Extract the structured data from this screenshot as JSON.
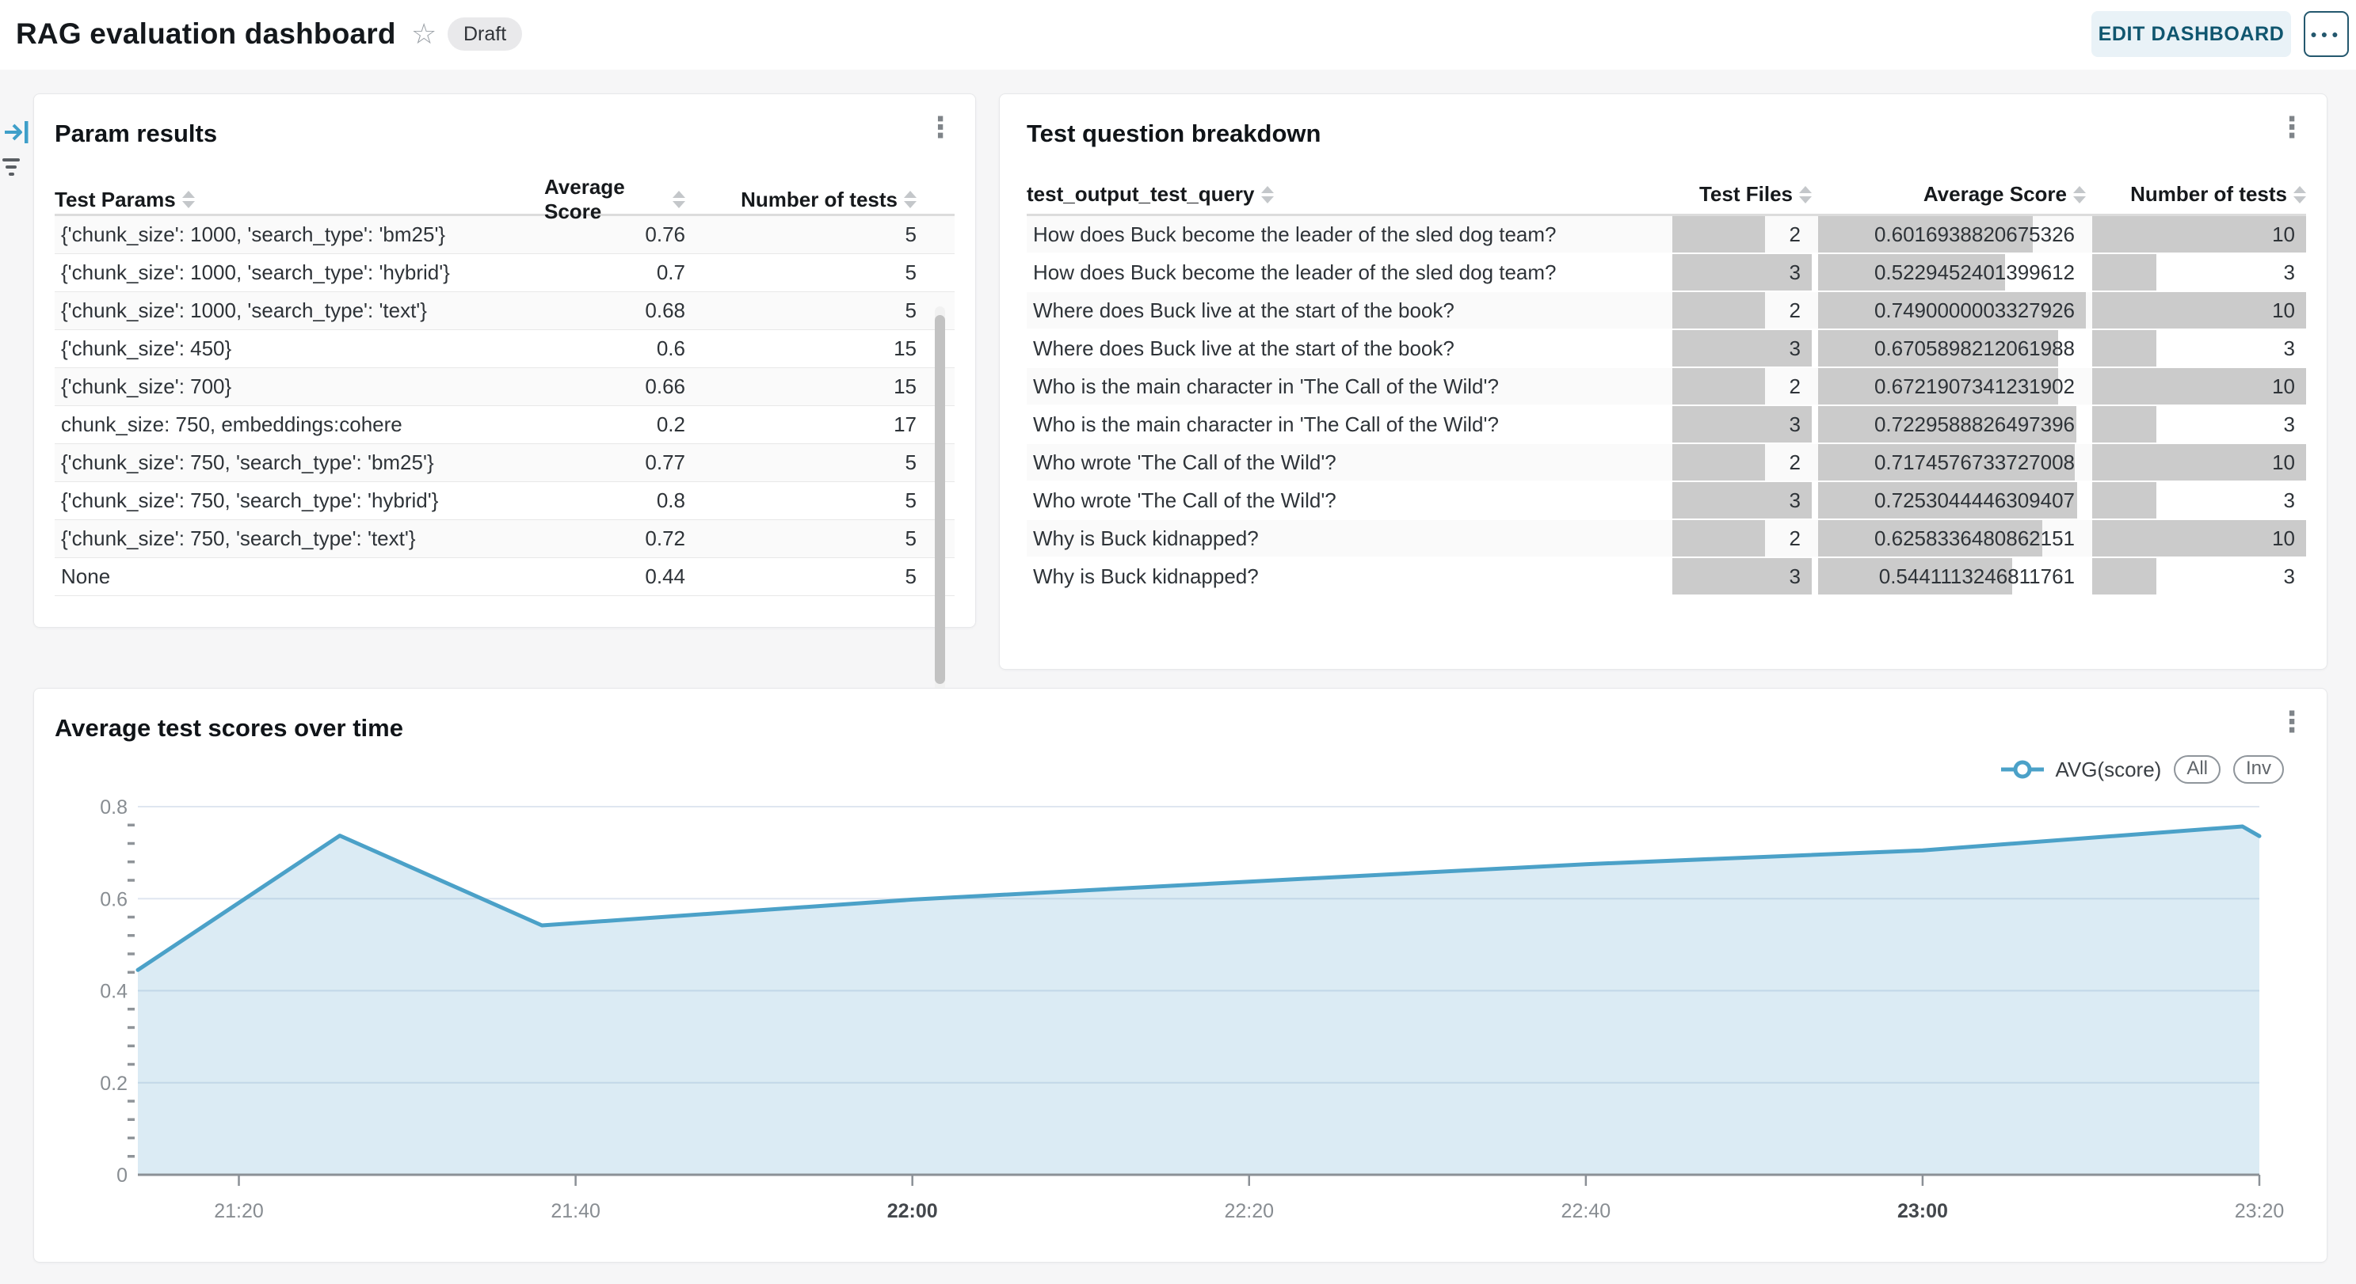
{
  "header": {
    "title": "RAG evaluation dashboard",
    "status_badge": "Draft",
    "edit_button": "EDIT DASHBOARD"
  },
  "icons": {
    "star": "☆",
    "card_menu": "⋮",
    "more_menu": "●●●"
  },
  "param_results": {
    "title": "Param results",
    "columns": [
      "Test Params",
      "Average Score",
      "Number of tests"
    ],
    "rows": [
      {
        "params": "{'chunk_size': 1000, 'search_type': 'bm25'}",
        "score": "0.76",
        "tests": "5"
      },
      {
        "params": "{'chunk_size': 1000, 'search_type': 'hybrid'}",
        "score": "0.7",
        "tests": "5"
      },
      {
        "params": "{'chunk_size': 1000, 'search_type': 'text'}",
        "score": "0.68",
        "tests": "5"
      },
      {
        "params": "{'chunk_size': 450}",
        "score": "0.6",
        "tests": "15"
      },
      {
        "params": "{'chunk_size': 700}",
        "score": "0.66",
        "tests": "15"
      },
      {
        "params": "chunk_size: 750, embeddings:cohere",
        "score": "0.2",
        "tests": "17"
      },
      {
        "params": "{'chunk_size': 750, 'search_type': 'bm25'}",
        "score": "0.77",
        "tests": "5"
      },
      {
        "params": "{'chunk_size': 750, 'search_type': 'hybrid'}",
        "score": "0.8",
        "tests": "5"
      },
      {
        "params": "{'chunk_size': 750, 'search_type': 'text'}",
        "score": "0.72",
        "tests": "5"
      },
      {
        "params": "None",
        "score": "0.44",
        "tests": "5"
      }
    ]
  },
  "test_question_breakdown": {
    "title": "Test question breakdown",
    "columns": [
      "test_output_test_query",
      "Test Files",
      "Average Score",
      "Number of tests"
    ],
    "bar_max": {
      "files": 3,
      "tests": 10
    },
    "rows": [
      {
        "query": "How does Buck become the leader of the sled dog team?",
        "files": "2",
        "score": "0.6016938820675326",
        "tests": "10"
      },
      {
        "query": "How does Buck become the leader of the sled dog team?",
        "files": "3",
        "score": "0.5229452401399612",
        "tests": "3"
      },
      {
        "query": "Where does Buck live at the start of the book?",
        "files": "2",
        "score": "0.7490000003327926",
        "tests": "10"
      },
      {
        "query": "Where does Buck live at the start of the book?",
        "files": "3",
        "score": "0.6705898212061988",
        "tests": "3"
      },
      {
        "query": "Who is the main character in 'The Call of the Wild'?",
        "files": "2",
        "score": "0.6721907341231902",
        "tests": "10"
      },
      {
        "query": "Who is the main character in 'The Call of the Wild'?",
        "files": "3",
        "score": "0.7229588826497396",
        "tests": "3"
      },
      {
        "query": "Who wrote 'The Call of the Wild'?",
        "files": "2",
        "score": "0.7174576733727008",
        "tests": "10"
      },
      {
        "query": "Who wrote 'The Call of the Wild'?",
        "files": "3",
        "score": "0.7253044446309407",
        "tests": "3"
      },
      {
        "query": "Why is Buck kidnapped?",
        "files": "2",
        "score": "0.6258336480862151",
        "tests": "10"
      },
      {
        "query": "Why is Buck kidnapped?",
        "files": "3",
        "score": "0.5441113246811761",
        "tests": "3"
      }
    ]
  },
  "chart_data": {
    "type": "area",
    "title": "Average test scores over time",
    "ylim": [
      0,
      0.8
    ],
    "y_ticks": [
      0,
      0.2,
      0.4,
      0.6,
      0.8
    ],
    "y_minor_step": 0.04,
    "x_domain": [
      "21:14",
      "23:20"
    ],
    "x_ticks": [
      {
        "label": "21:20",
        "bold": false
      },
      {
        "label": "21:40",
        "bold": false
      },
      {
        "label": "22:00",
        "bold": true
      },
      {
        "label": "22:20",
        "bold": false
      },
      {
        "label": "22:40",
        "bold": false
      },
      {
        "label": "23:00",
        "bold": true
      },
      {
        "label": "23:20",
        "bold": false
      }
    ],
    "series": [
      {
        "name": "AVG(score)",
        "points": [
          [
            "21:14",
            0.445
          ],
          [
            "21:26",
            0.737
          ],
          [
            "21:38",
            0.542
          ],
          [
            "22:00",
            0.598
          ],
          [
            "22:20",
            0.637
          ],
          [
            "22:40",
            0.675
          ],
          [
            "23:00",
            0.705
          ],
          [
            "23:19",
            0.757
          ],
          [
            "23:20",
            0.736
          ]
        ]
      }
    ],
    "legend": {
      "series_label": "AVG(score)",
      "buttons": [
        "All",
        "Inv"
      ]
    },
    "colors": {
      "line": "#4BA1C8",
      "fill": "rgba(91,166,205,0.22)",
      "grid": "#dfe6f0",
      "axis": "#8b9096"
    }
  }
}
